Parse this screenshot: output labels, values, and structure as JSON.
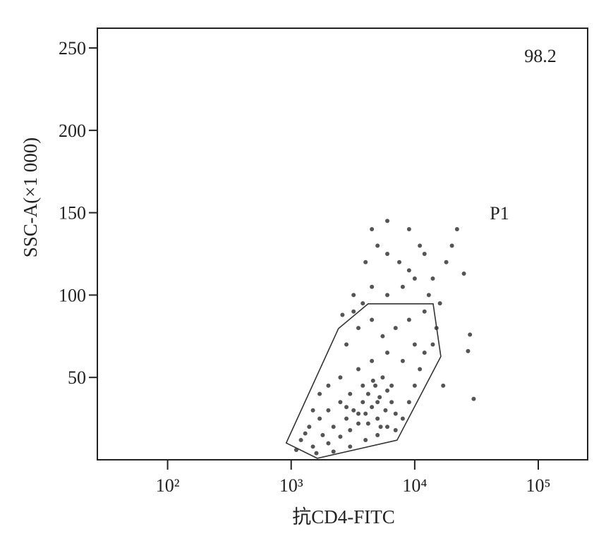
{
  "chart_data": {
    "type": "scatter",
    "xlabel": "抗CD4-FITC",
    "ylabel": "SSC-A(×1 000)",
    "xscale": "log",
    "xlim": [
      27,
      251000
    ],
    "ylim": [
      0,
      262
    ],
    "xticks": [
      {
        "value": 100,
        "label": "10²"
      },
      {
        "value": 1000,
        "label": "10³"
      },
      {
        "value": 10000,
        "label": "10⁴"
      },
      {
        "value": 100000,
        "label": "10⁵"
      }
    ],
    "yticks": [
      50,
      100,
      150,
      200,
      250
    ],
    "color": "#555555",
    "x": [
      1200,
      1500,
      1800,
      2000,
      2200,
      2500,
      2800,
      3000,
      3200,
      3500,
      3800,
      4000,
      4200,
      4500,
      4800,
      5000,
      5200,
      5500,
      5800,
      6000,
      6500,
      7000,
      3000,
      2500,
      2000,
      1700,
      1400,
      1100,
      1300,
      1600,
      2200,
      3000,
      4000,
      5000,
      6000,
      7000,
      8000,
      9000,
      10000,
      11000,
      12000,
      10000,
      8000,
      6000,
      4500,
      3500,
      2500,
      2000,
      1700,
      1500,
      2800,
      3500,
      4500,
      5500,
      7000,
      9000,
      12000,
      13000,
      10000,
      8000,
      6000,
      4500,
      3800,
      3200,
      4000,
      5000,
      6000,
      7500,
      9000,
      11000,
      14000,
      16000,
      20000,
      22000,
      25000,
      27000,
      28000,
      30000,
      17000,
      4500,
      6000,
      3200,
      2600,
      9000,
      12000,
      14000,
      15000,
      18000,
      3500,
      4200,
      5000,
      3800,
      6500,
      2800,
      4600,
      5300
    ],
    "values": [
      12,
      8,
      15,
      10,
      20,
      14,
      25,
      18,
      30,
      22,
      35,
      28,
      40,
      32,
      45,
      25,
      38,
      50,
      30,
      42,
      35,
      28,
      40,
      35,
      30,
      25,
      20,
      6,
      16,
      4,
      5,
      8,
      12,
      15,
      20,
      18,
      25,
      35,
      45,
      55,
      65,
      70,
      60,
      65,
      60,
      55,
      50,
      45,
      40,
      30,
      70,
      80,
      85,
      75,
      80,
      85,
      90,
      100,
      110,
      105,
      100,
      105,
      95,
      90,
      120,
      130,
      125,
      120,
      115,
      130,
      110,
      95,
      130,
      140,
      113,
      66,
      76,
      37,
      45,
      140,
      145,
      100,
      88,
      140,
      125,
      70,
      80,
      120,
      28,
      22,
      35,
      45,
      45,
      32,
      48,
      20
    ],
    "gate": {
      "label": "P1",
      "x": [
        912,
        1626,
        7194,
        16270,
        14090,
        4198,
        2415
      ],
      "y": [
        10.2,
        0.9,
        11.9,
        62.7,
        94.7,
        94.7,
        79.7
      ]
    },
    "gate_percent": 98.2
  }
}
